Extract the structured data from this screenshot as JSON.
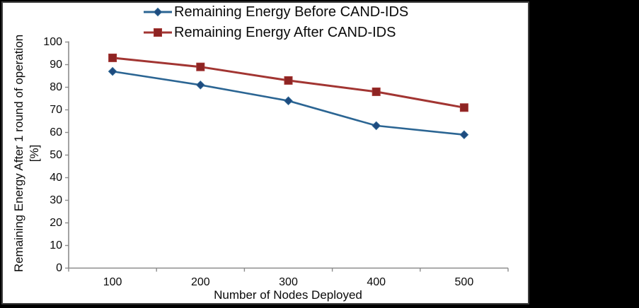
{
  "window": {
    "background": "#000000",
    "panel_background": "#ffffff",
    "panel_border": "#3f3f3f"
  },
  "chart_data": {
    "type": "line",
    "title": "",
    "categories": [
      "100",
      "200",
      "300",
      "400",
      "500"
    ],
    "series": [
      {
        "name": "Remaining Energy Before CAND-IDS",
        "values": [
          87,
          81,
          74,
          63,
          59
        ],
        "color": "#2B6593",
        "marker": "diamond",
        "marker_color": "#1E4B7F"
      },
      {
        "name": "Remaining Energy After CAND-IDS",
        "values": [
          93,
          89,
          83,
          78,
          71
        ],
        "color": "#A23532",
        "marker": "square",
        "marker_color": "#8E2423"
      }
    ],
    "xlabel": "Number of Nodes Deployed",
    "ylabel_line1": "Remaining Energy After 1 round of operation",
    "ylabel_line2": "[%]",
    "ylim": [
      0,
      100
    ],
    "yticks": [
      0,
      10,
      20,
      30,
      40,
      50,
      60,
      70,
      80,
      90,
      100
    ],
    "grid": false,
    "legend_position": "top-center",
    "axis_color": "#8C8C8C",
    "text_color": "#0A0A0A"
  }
}
